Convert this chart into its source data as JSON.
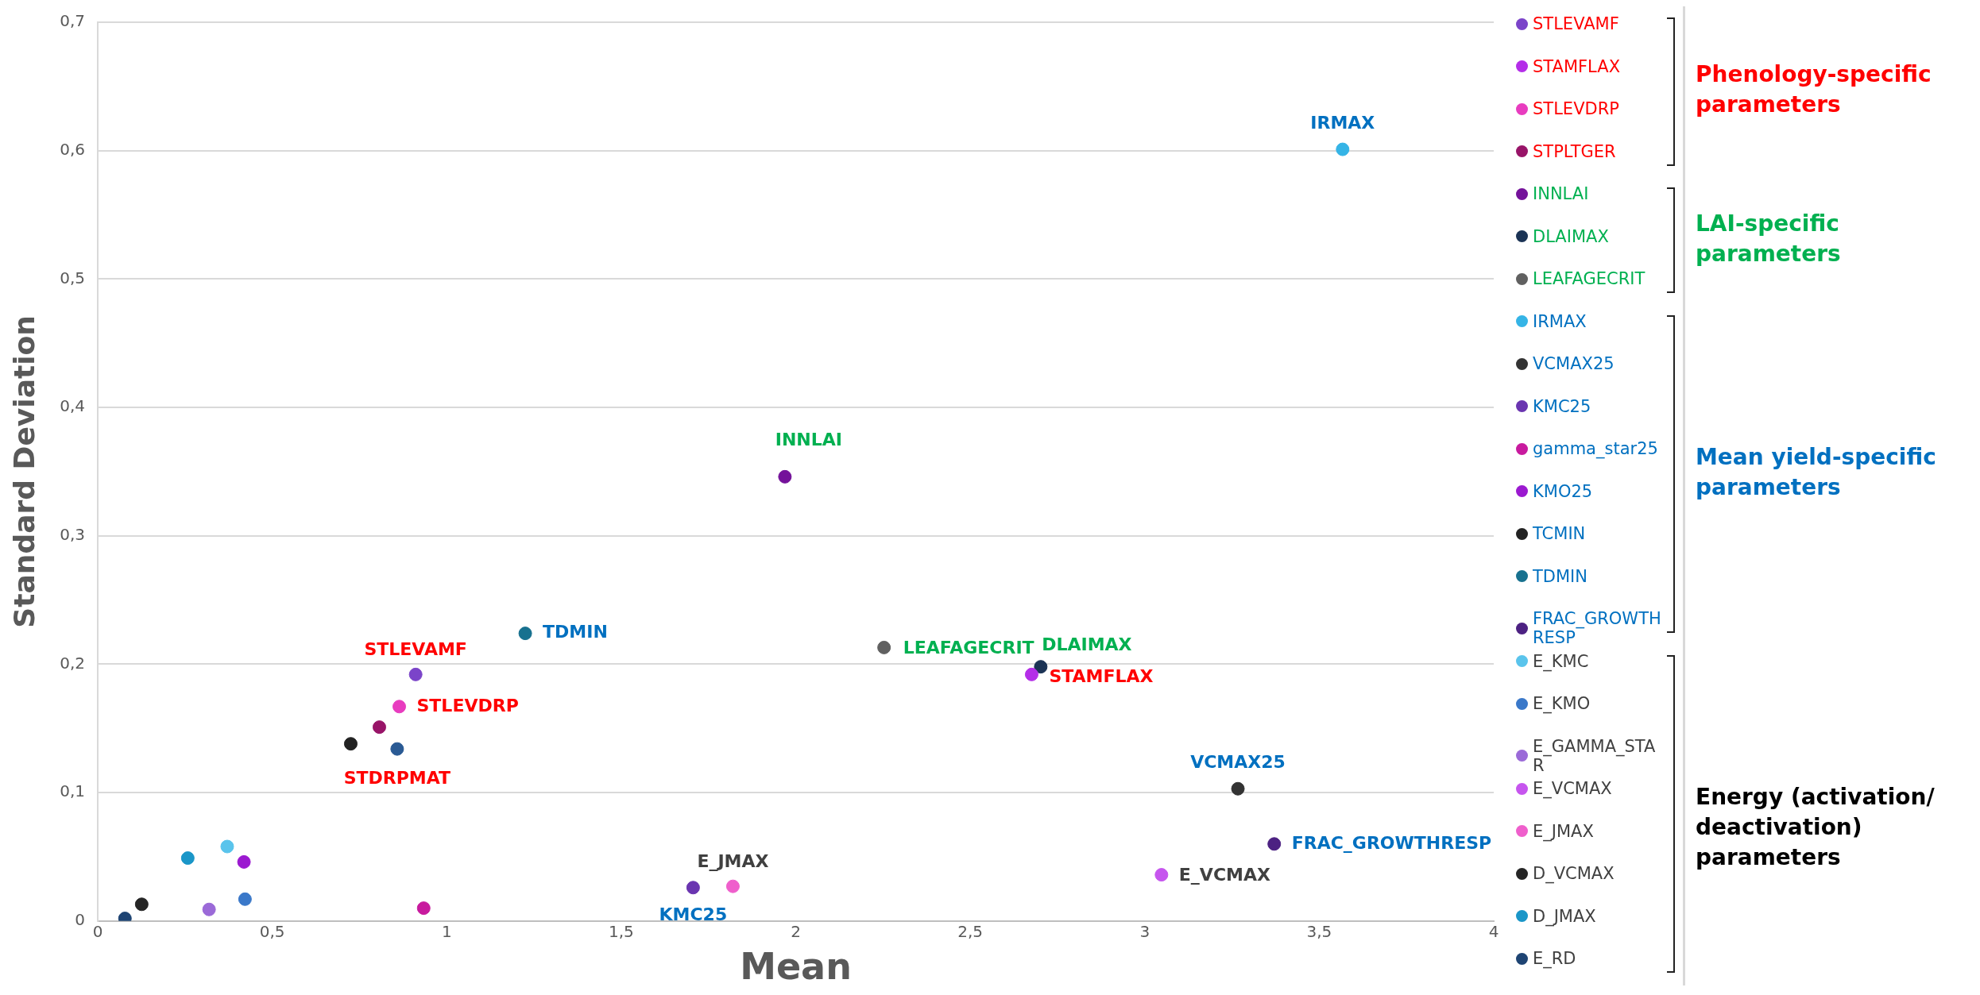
{
  "chart_data": {
    "type": "scatter",
    "xlabel": "Mean",
    "ylabel": "Standard Deviation",
    "xlim": [
      0,
      4
    ],
    "ylim": [
      0,
      0.7
    ],
    "xticks": [
      0,
      {
        "value": 0.5,
        "label": "0,5"
      },
      1,
      {
        "value": 1.5,
        "label": "1,5"
      },
      2,
      {
        "value": 2.5,
        "label": "2,5"
      },
      3,
      {
        "value": 3.5,
        "label": "3,5"
      },
      4
    ],
    "yticks": [
      0,
      {
        "value": 0.1,
        "label": "0,1"
      },
      {
        "value": 0.2,
        "label": "0,2"
      },
      {
        "value": 0.3,
        "label": "0,3"
      },
      {
        "value": 0.4,
        "label": "0,4"
      },
      {
        "value": 0.5,
        "label": "0,5"
      },
      {
        "value": 0.6,
        "label": "0,6"
      },
      {
        "value": 0.7,
        "label": "0,7"
      }
    ],
    "grid": "y",
    "legend": "right",
    "marker": "circle",
    "series": [
      {
        "name": "STLEVAMF",
        "color": "#7b44c9",
        "x": [
          0.911
        ],
        "values": [
          0.192
        ]
      },
      {
        "name": "STAMFLAX",
        "color": "#b42ee8",
        "x": [
          2.676
        ],
        "values": [
          0.192
        ]
      },
      {
        "name": "STLEVDRP",
        "color": "#e83cbf",
        "x": [
          0.864
        ],
        "values": [
          0.167
        ]
      },
      {
        "name": "STPLTGER",
        "color": "#981468",
        "x": [
          0.807
        ],
        "values": [
          0.151
        ]
      },
      {
        "name": "INNLAI",
        "color": "#74129a",
        "x": [
          1.969
        ],
        "values": [
          0.346
        ]
      },
      {
        "name": "DLAIMAX",
        "color": "#1b3355",
        "x": [
          2.702
        ],
        "values": [
          0.198
        ]
      },
      {
        "name": "LEAFAGECRIT",
        "color": "#606060",
        "x": [
          2.253
        ],
        "values": [
          0.213
        ]
      },
      {
        "name": "IRMAX",
        "color": "#35b4e6",
        "x": [
          3.567
        ],
        "values": [
          0.601
        ]
      },
      {
        "name": "VCMAX25",
        "color": "#333333",
        "x": [
          3.267
        ],
        "values": [
          0.103
        ]
      },
      {
        "name": "KMC25",
        "color": "#6a35b0",
        "x": [
          1.706
        ],
        "values": [
          0.026
        ]
      },
      {
        "name": "gamma_star25",
        "color": "#c81a9e",
        "x": [
          0.934
        ],
        "values": [
          0.01
        ]
      },
      {
        "name": "KMO25",
        "color": "#9b19d0",
        "x": [
          0.419
        ],
        "values": [
          0.046
        ]
      },
      {
        "name": "TCMIN",
        "color": "#222222",
        "x": [
          0.725
        ],
        "values": [
          0.138
        ]
      },
      {
        "name": "TDMIN",
        "color": "#17718f",
        "x": [
          1.225
        ],
        "values": [
          0.224
        ]
      },
      {
        "name": "FRAC_GROWTHRESP",
        "color": "#4c2182",
        "x": [
          3.371
        ],
        "values": [
          0.06
        ]
      },
      {
        "name": "E_KMC",
        "color": "#5ac4ec",
        "x": [
          0.371
        ],
        "values": [
          0.058
        ]
      },
      {
        "name": "E_KMO",
        "color": "#3a78c9",
        "x": [
          0.422
        ],
        "values": [
          0.017
        ]
      },
      {
        "name": "E_GAMMA_STAR",
        "color": "#9b6ad8",
        "x": [
          0.319
        ],
        "values": [
          0.009
        ]
      },
      {
        "name": "E_VCMAX",
        "color": "#c655ee",
        "x": [
          3.048
        ],
        "values": [
          0.036
        ]
      },
      {
        "name": "E_JMAX",
        "color": "#ef5fcc",
        "x": [
          1.82
        ],
        "values": [
          0.027
        ]
      },
      {
        "name": "D_VCMAX",
        "color": "#252525",
        "x": [
          0.126
        ],
        "values": [
          0.013
        ]
      },
      {
        "name": "D_JMAX",
        "color": "#1a96c8",
        "x": [
          0.258
        ],
        "values": [
          0.049
        ]
      },
      {
        "name": "E_RD",
        "color": "#1e4473",
        "x": [
          0.078
        ],
        "values": [
          0.002
        ]
      },
      {
        "color": "#2a5a94",
        "x": [
          0.858
        ],
        "values": [
          0.134
        ]
      }
    ],
    "annotations": [
      "Phenology-specific parameters",
      "LAI-specific parameters",
      "Mean yield-specific parameters",
      "Energy (activation/ deactivation) parameters",
      {
        "text": "STLEVAMF",
        "x": 0.911,
        "y": 0.192
      },
      {
        "text": "STAMFLAX",
        "x": 2.676,
        "y": 0.192
      },
      {
        "text": "STLEVDRP",
        "x": 0.864,
        "y": 0.167
      },
      {
        "text": "STDRPMAT",
        "x": 0.858,
        "y": 0.134
      },
      {
        "text": "INNLAI",
        "x": 1.969,
        "y": 0.346
      },
      {
        "text": "DLAIMAX",
        "x": 2.702,
        "y": 0.198
      },
      {
        "text": "LEAFAGECRIT",
        "x": 2.253,
        "y": 0.213
      },
      {
        "text": "IRMAX",
        "x": 3.567,
        "y": 0.601
      },
      {
        "text": "VCMAX25",
        "x": 3.267,
        "y": 0.103
      },
      {
        "text": "KMC25",
        "x": 1.706,
        "y": 0.026
      },
      {
        "text": "TDMIN",
        "x": 1.225,
        "y": 0.224
      },
      {
        "text": "FRAC_GROWTHRESP",
        "x": 3.371,
        "y": 0.06
      },
      {
        "text": "E_VCMAX",
        "x": 3.048,
        "y": 0.036
      },
      {
        "text": "E_JMAX",
        "x": 1.82,
        "y": 0.027
      }
    ]
  }
}
